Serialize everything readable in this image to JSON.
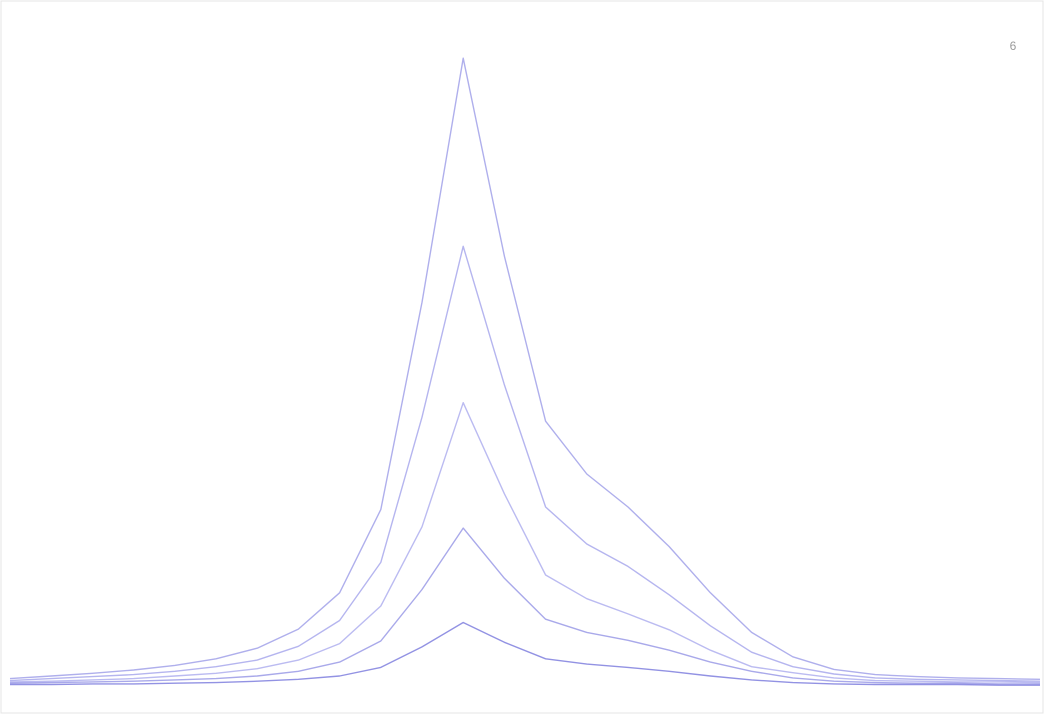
{
  "chart_data": {
    "type": "line",
    "annotation": "6",
    "x": [
      0,
      4,
      8,
      12,
      16,
      20,
      24,
      28,
      32,
      36,
      40,
      44,
      48,
      52,
      56,
      60,
      64,
      68,
      72,
      76,
      80,
      84,
      88,
      92,
      96,
      100
    ],
    "xlim": [
      0,
      100
    ],
    "ylim": [
      0,
      100
    ],
    "series": [
      {
        "color": "#7a7ae0",
        "values": [
          4,
          4.4,
          4.8,
          5.3,
          6,
          7,
          8.6,
          11.5,
          17,
          29.6,
          61,
          98,
          68,
          43,
          35,
          30,
          24,
          17,
          11,
          7.3,
          5.4,
          4.6,
          4.3,
          4.1,
          4,
          3.9
        ]
      },
      {
        "color": "#8484e4",
        "values": [
          3.7,
          4,
          4.3,
          4.6,
          5.1,
          5.8,
          6.8,
          8.9,
          12.8,
          21.6,
          43.6,
          69.5,
          48.5,
          30,
          24.4,
          21,
          16.7,
          12,
          8,
          5.8,
          4.7,
          4.1,
          3.9,
          3.8,
          3.7,
          3.6
        ]
      },
      {
        "color": "#8e8ee8",
        "values": [
          3.5,
          3.6,
          3.8,
          4,
          4.4,
          4.8,
          5.5,
          6.8,
          9.3,
          15,
          27,
          45.8,
          32,
          19.7,
          16.1,
          13.8,
          11.4,
          8.3,
          5.8,
          4.9,
          4.1,
          3.7,
          3.6,
          3.5,
          3.5,
          3.4
        ]
      },
      {
        "color": "#7070dc",
        "values": [
          3.3,
          3.4,
          3.5,
          3.6,
          3.8,
          4,
          4.4,
          5.1,
          6.5,
          9.7,
          17.5,
          26.8,
          19.2,
          13,
          11,
          9.8,
          8.3,
          6.5,
          5.1,
          4.1,
          3.6,
          3.4,
          3.3,
          3.3,
          3.2,
          3.2
        ]
      },
      {
        "color": "#4a4ad0",
        "values": [
          3.1,
          3.1,
          3.2,
          3.2,
          3.3,
          3.4,
          3.6,
          3.9,
          4.4,
          5.7,
          8.8,
          12.5,
          9.5,
          7,
          6.2,
          5.7,
          5.1,
          4.4,
          3.8,
          3.4,
          3.2,
          3.1,
          3.1,
          3.1,
          3,
          3
        ]
      }
    ]
  }
}
